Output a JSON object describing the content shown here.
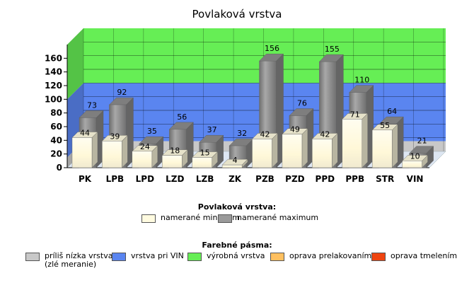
{
  "chart_data": {
    "type": "bar",
    "title": "Povlaková vrstva",
    "categories": [
      "PK",
      "LPB",
      "LPD",
      "LZD",
      "LZB",
      "ZK",
      "PZB",
      "PZD",
      "PPD",
      "PPB",
      "STR",
      "VIN"
    ],
    "series": [
      {
        "name": "namerané minimum",
        "values": [
          44,
          39,
          24,
          18,
          15,
          4,
          42,
          49,
          42,
          71,
          55,
          10
        ],
        "color": "#fffbe0"
      },
      {
        "name": "namerané maximum",
        "values": [
          73,
          92,
          35,
          56,
          37,
          32,
          156,
          76,
          155,
          110,
          64,
          21
        ],
        "color": "#8c8c8c"
      }
    ],
    "ylim": [
      0,
      180
    ],
    "yticks": [
      0,
      20,
      40,
      60,
      80,
      100,
      120,
      140,
      160
    ],
    "bands": [
      {
        "from": 0,
        "to": 15,
        "color": "#c8c8c8"
      },
      {
        "from": 15,
        "to": 100,
        "color": "#5a85f0"
      },
      {
        "from": 100,
        "to": 180,
        "color": "#66ee55"
      }
    ],
    "legend_title": "Povlaková vrstva:",
    "bands_legend_title": "Farebné pásma:",
    "bands_legend": [
      {
        "label": "príliš nízka vrstva\n(zlé meranie)",
        "color": "#c8c8c8"
      },
      {
        "label": "vrstva pri VIN",
        "color": "#5a85f0"
      },
      {
        "label": "výrobná vrstva",
        "color": "#66ee55"
      },
      {
        "label": "oprava prelakovaním",
        "color": "#ffc060"
      },
      {
        "label": "oprava tmelením",
        "color": "#ee4410"
      }
    ]
  }
}
